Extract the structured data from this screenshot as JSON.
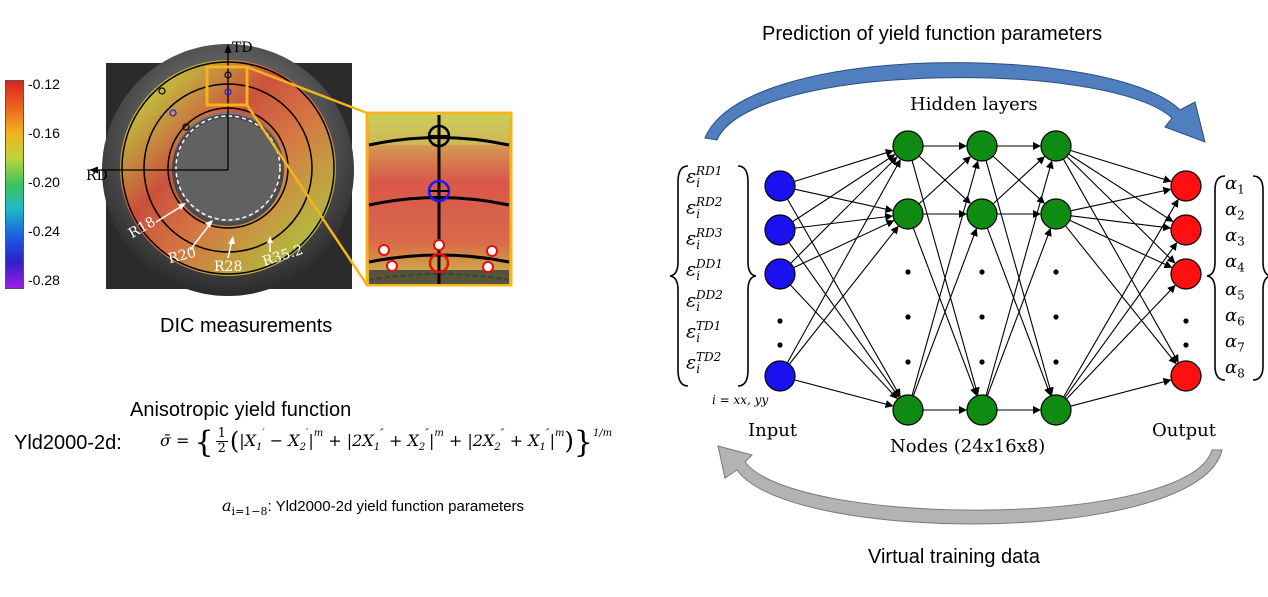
{
  "dic": {
    "caption": "DIC measurements",
    "axis_td": "TD",
    "axis_rd": "RD",
    "radius_labels": [
      "R18",
      "R20",
      "R28",
      "R35.2"
    ],
    "colorbar_ticks": [
      "-0.12",
      "-0.16",
      "-0.20",
      "-0.24",
      "-0.28"
    ]
  },
  "yield": {
    "title": "Anisotropic yield function",
    "model_label": "Yld2000-2d:",
    "params_sub": "i=1−8",
    "params_text": ": Yld2000-2d yield function parameters"
  },
  "network": {
    "top_title": "Prediction of yield function parameters",
    "bottom_title": "Virtual training data",
    "hidden_label": "Hidden layers",
    "input_label": "Input",
    "nodes_label": "Nodes (24x16x8)",
    "output_label": "Output",
    "index_note": "i = xx, yy",
    "inputs": [
      {
        "sup": "RD1"
      },
      {
        "sup": "RD2"
      },
      {
        "sup": "RD3"
      },
      {
        "sup": "DD1"
      },
      {
        "sup": "DD2"
      },
      {
        "sup": "TD1"
      },
      {
        "sup": "TD2"
      }
    ],
    "outputs": [
      "1",
      "2",
      "3",
      "4",
      "5",
      "6",
      "7",
      "8"
    ],
    "colors": {
      "input_node": "#1a10f0",
      "hidden_node": "#0f8a12",
      "output_node": "#ff1010",
      "top_arrow": "#4f7fbf",
      "bottom_arrow": "#b3b3b3",
      "highlight_box": "#f4b41a"
    }
  }
}
